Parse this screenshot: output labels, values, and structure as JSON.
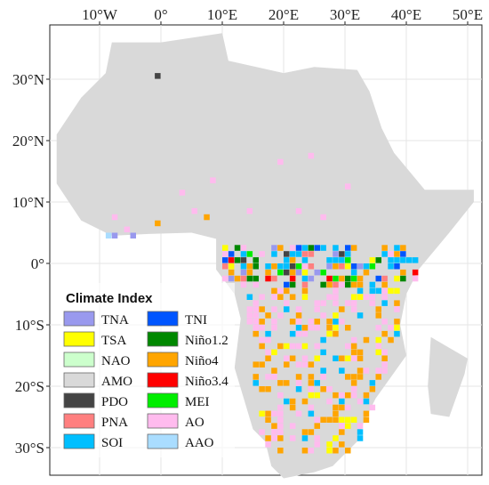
{
  "map": {
    "x_ticks": [
      "10°W",
      "0°",
      "10°E",
      "20°E",
      "30°E",
      "40°E",
      "50°E"
    ],
    "x_values": [
      -10,
      0,
      10,
      20,
      30,
      40,
      50
    ],
    "y_ticks": [
      "30°N",
      "20°N",
      "10°N",
      "0°",
      "10°S",
      "20°S",
      "30°S"
    ],
    "y_values": [
      30,
      20,
      10,
      0,
      -10,
      -20,
      -30
    ],
    "land_color": "#d9d9d9",
    "grid": true
  },
  "legend": {
    "title": "Climate Index",
    "items": [
      {
        "label": "TNA",
        "color": "#9999ee"
      },
      {
        "label": "TNI",
        "color": "#0055ff"
      },
      {
        "label": "TSA",
        "color": "#ffff00"
      },
      {
        "label": "Niño1.2",
        "color": "#008800"
      },
      {
        "label": "NAO",
        "color": "#ccffcc"
      },
      {
        "label": "Niño4",
        "color": "#ffa500"
      },
      {
        "label": "AMO",
        "color": "#d9d9d9"
      },
      {
        "label": "Niño3.4",
        "color": "#ff0000"
      },
      {
        "label": "PDO",
        "color": "#444444"
      },
      {
        "label": "MEI",
        "color": "#00ee00"
      },
      {
        "label": "PNA",
        "color": "#ff7f7f"
      },
      {
        "label": "AO",
        "color": "#ffbbee"
      },
      {
        "label": "SOI",
        "color": "#00bfff"
      },
      {
        "label": "AAO",
        "color": "#aaddff"
      }
    ]
  }
}
